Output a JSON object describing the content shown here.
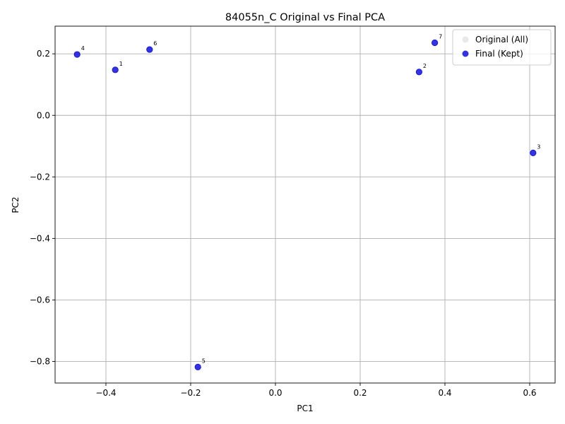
{
  "chart_data": {
    "type": "scatter",
    "title": "84055n_C Original vs Final PCA",
    "xlabel": "PC1",
    "ylabel": "PC2",
    "xlim": [
      -0.52,
      0.66
    ],
    "ylim": [
      -0.87,
      0.29
    ],
    "xticks": [
      -0.4,
      -0.2,
      0.0,
      0.2,
      0.4,
      0.6
    ],
    "xtick_labels": [
      "−0.4",
      "−0.2",
      "0.0",
      "0.2",
      "0.4",
      "0.6"
    ],
    "yticks": [
      -0.8,
      -0.6,
      -0.4,
      -0.2,
      0.0,
      0.2
    ],
    "ytick_labels": [
      "−0.8",
      "−0.6",
      "−0.4",
      "−0.2",
      "0.0",
      "0.2"
    ],
    "grid": true,
    "legend_position": "top-right",
    "series": [
      {
        "name": "Original (All)",
        "color": "#d3d3d3",
        "points": []
      },
      {
        "name": "Final (Kept)",
        "color": "#0000dd",
        "points": [
          {
            "label": "1",
            "x": -0.378,
            "y": 0.148
          },
          {
            "label": "2",
            "x": 0.339,
            "y": 0.141
          },
          {
            "label": "3",
            "x": 0.608,
            "y": -0.122
          },
          {
            "label": "4",
            "x": -0.468,
            "y": 0.198
          },
          {
            "label": "5",
            "x": -0.183,
            "y": -0.818
          },
          {
            "label": "6",
            "x": -0.297,
            "y": 0.214
          },
          {
            "label": "7",
            "x": 0.376,
            "y": 0.236
          }
        ]
      }
    ]
  }
}
